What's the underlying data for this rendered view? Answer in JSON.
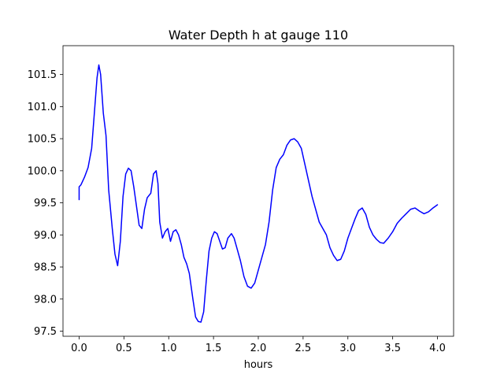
{
  "chart_data": {
    "type": "line",
    "title": "Water Depth h at gauge 110",
    "xlabel": "hours",
    "ylabel": "",
    "xlim": [
      -0.18,
      4.18
    ],
    "ylim": [
      97.42,
      101.95
    ],
    "xticks": [
      0.0,
      0.5,
      1.0,
      1.5,
      2.0,
      2.5,
      3.0,
      3.5,
      4.0
    ],
    "xtick_labels": [
      "0.0",
      "0.5",
      "1.0",
      "1.5",
      "2.0",
      "2.5",
      "3.0",
      "3.5",
      "4.0"
    ],
    "yticks": [
      97.5,
      98.0,
      98.5,
      99.0,
      99.5,
      100.0,
      100.5,
      101.0,
      101.5
    ],
    "ytick_labels": [
      "97.5",
      "98.0",
      "98.5",
      "99.0",
      "99.5",
      "100.0",
      "100.5",
      "101.0",
      "101.5"
    ],
    "grid": false,
    "legend": false,
    "line_color": "#0000ff",
    "series": [
      {
        "x": [
          0.0,
          0.0,
          0.02,
          0.06,
          0.1,
          0.14,
          0.17,
          0.2,
          0.22,
          0.24,
          0.27,
          0.3,
          0.33,
          0.37,
          0.4,
          0.43,
          0.46,
          0.49,
          0.52,
          0.55,
          0.58,
          0.61,
          0.64,
          0.67,
          0.7,
          0.73,
          0.76,
          0.8,
          0.83,
          0.86,
          0.88,
          0.9,
          0.93,
          0.96,
          0.99,
          1.02,
          1.05,
          1.08,
          1.11,
          1.14,
          1.17,
          1.2,
          1.23,
          1.27,
          1.3,
          1.33,
          1.36,
          1.39,
          1.42,
          1.45,
          1.48,
          1.51,
          1.54,
          1.57,
          1.6,
          1.63,
          1.66,
          1.7,
          1.73,
          1.76,
          1.8,
          1.84,
          1.88,
          1.92,
          1.96,
          2.0,
          2.04,
          2.08,
          2.12,
          2.16,
          2.2,
          2.24,
          2.28,
          2.32,
          2.36,
          2.4,
          2.44,
          2.48,
          2.52,
          2.56,
          2.6,
          2.64,
          2.68,
          2.72,
          2.76,
          2.8,
          2.84,
          2.88,
          2.92,
          2.96,
          3.0,
          3.04,
          3.08,
          3.12,
          3.16,
          3.2,
          3.24,
          3.28,
          3.32,
          3.36,
          3.4,
          3.45,
          3.5,
          3.55,
          3.6,
          3.65,
          3.7,
          3.75,
          3.8,
          3.85,
          3.9,
          3.95,
          4.0
        ],
        "y": [
          99.55,
          99.75,
          99.78,
          99.9,
          100.05,
          100.35,
          100.9,
          101.45,
          101.65,
          101.5,
          100.9,
          100.55,
          99.7,
          99.1,
          98.7,
          98.52,
          98.9,
          99.6,
          99.95,
          100.04,
          100.0,
          99.75,
          99.45,
          99.15,
          99.1,
          99.4,
          99.58,
          99.65,
          99.95,
          100.0,
          99.8,
          99.2,
          98.95,
          99.05,
          99.1,
          98.9,
          99.05,
          99.08,
          99.0,
          98.85,
          98.65,
          98.55,
          98.4,
          98.0,
          97.72,
          97.65,
          97.64,
          97.8,
          98.3,
          98.75,
          98.95,
          99.05,
          99.02,
          98.9,
          98.78,
          98.8,
          98.95,
          99.02,
          98.95,
          98.8,
          98.6,
          98.35,
          98.2,
          98.17,
          98.25,
          98.45,
          98.65,
          98.85,
          99.2,
          99.7,
          100.05,
          100.18,
          100.25,
          100.4,
          100.48,
          100.5,
          100.45,
          100.35,
          100.1,
          99.85,
          99.6,
          99.4,
          99.2,
          99.1,
          99.0,
          98.8,
          98.68,
          98.6,
          98.62,
          98.75,
          98.95,
          99.1,
          99.25,
          99.38,
          99.42,
          99.32,
          99.12,
          99.0,
          98.93,
          98.88,
          98.87,
          98.95,
          99.05,
          99.18,
          99.26,
          99.33,
          99.4,
          99.42,
          99.37,
          99.33,
          99.36,
          99.42,
          99.47
        ]
      }
    ]
  }
}
